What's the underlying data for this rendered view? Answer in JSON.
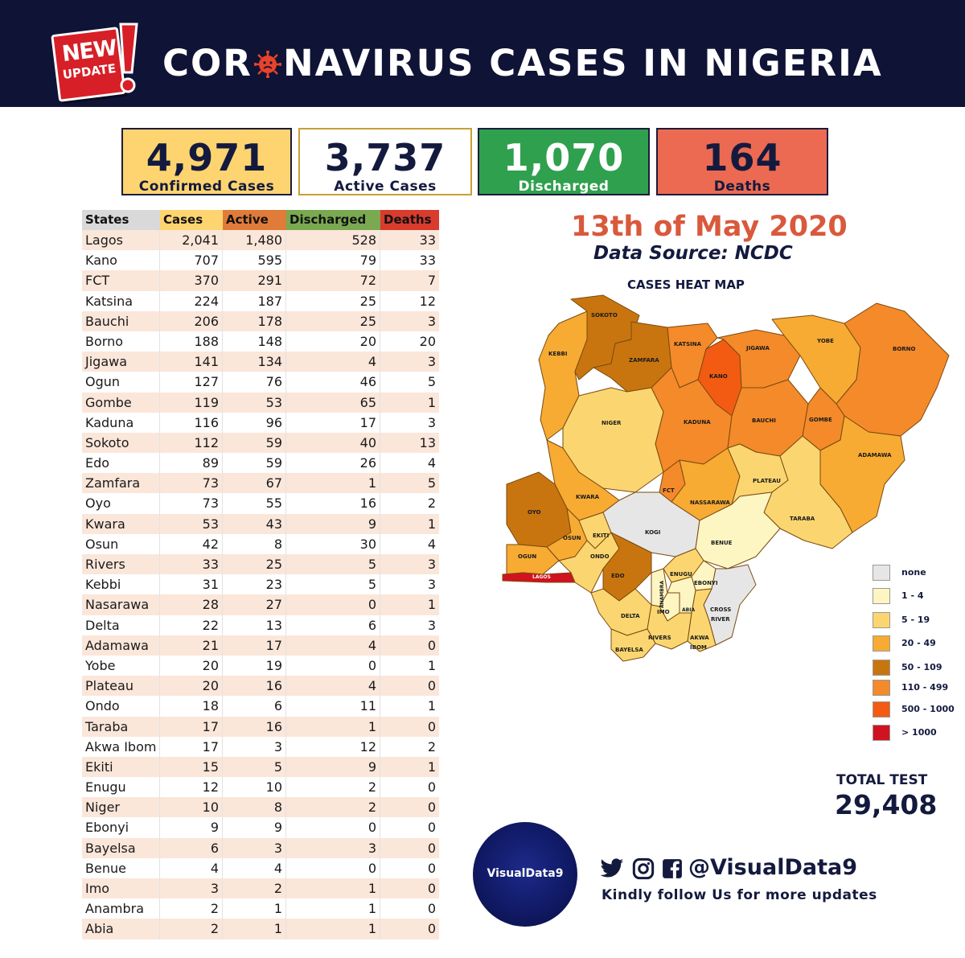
{
  "header": {
    "badge_new": "NEW",
    "badge_update": "UPDATE",
    "title_part1": "COR",
    "title_part2": "NAVIRUS CASES IN NIGERIA"
  },
  "summary": {
    "confirmed": {
      "value": "4,971",
      "label": "Confirmed Cases",
      "color": "#fdd46f"
    },
    "active": {
      "value": "3,737",
      "label": "Active Cases",
      "color": "#ffffff"
    },
    "discharged": {
      "value": "1,070",
      "label": "Discharged",
      "color": "#2fa04e"
    },
    "deaths": {
      "value": "164",
      "label": "Deaths",
      "color": "#ec6a52"
    }
  },
  "table": {
    "headers": [
      "States",
      "Cases",
      "Active",
      "Discharged",
      "Deaths"
    ],
    "rows": [
      [
        "Lagos",
        "2,041",
        "1,480",
        "528",
        "33"
      ],
      [
        "Kano",
        "707",
        "595",
        "79",
        "33"
      ],
      [
        "FCT",
        "370",
        "291",
        "72",
        "7"
      ],
      [
        "Katsina",
        "224",
        "187",
        "25",
        "12"
      ],
      [
        "Bauchi",
        "206",
        "178",
        "25",
        "3"
      ],
      [
        "Borno",
        "188",
        "148",
        "20",
        "20"
      ],
      [
        "Jigawa",
        "141",
        "134",
        "4",
        "3"
      ],
      [
        "Ogun",
        "127",
        "76",
        "46",
        "5"
      ],
      [
        "Gombe",
        "119",
        "53",
        "65",
        "1"
      ],
      [
        "Kaduna",
        "116",
        "96",
        "17",
        "3"
      ],
      [
        "Sokoto",
        "112",
        "59",
        "40",
        "13"
      ],
      [
        "Edo",
        "89",
        "59",
        "26",
        "4"
      ],
      [
        "Zamfara",
        "73",
        "67",
        "1",
        "5"
      ],
      [
        "Oyo",
        "73",
        "55",
        "16",
        "2"
      ],
      [
        "Kwara",
        "53",
        "43",
        "9",
        "1"
      ],
      [
        "Osun",
        "42",
        "8",
        "30",
        "4"
      ],
      [
        "Rivers",
        "33",
        "25",
        "5",
        "3"
      ],
      [
        "Kebbi",
        "31",
        "23",
        "5",
        "3"
      ],
      [
        "Nasarawa",
        "28",
        "27",
        "0",
        "1"
      ],
      [
        "Delta",
        "22",
        "13",
        "6",
        "3"
      ],
      [
        "Adamawa",
        "21",
        "17",
        "4",
        "0"
      ],
      [
        "Yobe",
        "20",
        "19",
        "0",
        "1"
      ],
      [
        "Plateau",
        "20",
        "16",
        "4",
        "0"
      ],
      [
        "Ondo",
        "18",
        "6",
        "11",
        "1"
      ],
      [
        "Taraba",
        "17",
        "16",
        "1",
        "0"
      ],
      [
        "Akwa Ibom",
        "17",
        "3",
        "12",
        "2"
      ],
      [
        "Ekiti",
        "15",
        "5",
        "9",
        "1"
      ],
      [
        "Enugu",
        "12",
        "10",
        "2",
        "0"
      ],
      [
        "Niger",
        "10",
        "8",
        "2",
        "0"
      ],
      [
        "Ebonyi",
        "9",
        "9",
        "0",
        "0"
      ],
      [
        "Bayelsa",
        "6",
        "3",
        "3",
        "0"
      ],
      [
        "Benue",
        "4",
        "4",
        "0",
        "0"
      ],
      [
        "Imo",
        "3",
        "2",
        "1",
        "0"
      ],
      [
        "Anambra",
        "2",
        "1",
        "1",
        "0"
      ],
      [
        "Abia",
        "2",
        "1",
        "1",
        "0"
      ]
    ]
  },
  "date": "13th of May 2020",
  "source": "Data Source: NCDC",
  "heatmap_title": "CASES HEAT MAP",
  "map_labels": {
    "sokoto": "SOKOTO",
    "kebbi": "KEBBI",
    "zamfara": "ZAMFARA",
    "katsina": "KATSINA",
    "kano": "KANO",
    "jigawa": "JIGAWA",
    "yobe": "YOBE",
    "borno": "BORNO",
    "niger": "NIGER",
    "kaduna": "KADUNA",
    "bauchi": "BAUCHI",
    "gombe": "GOMBE",
    "adamawa": "ADAMAWA",
    "fct": "FCT",
    "plateau": "PLATEAU",
    "nassarawa": "NASSARAWA",
    "kwara": "KWARA",
    "oyo": "OYO",
    "taraba": "TARABA",
    "kogi": "KOGI",
    "osun": "OSUN",
    "ekiti": "EKITI",
    "benue": "BENUE",
    "ogun": "OGUN",
    "ondo": "ONDO",
    "edo": "EDO",
    "lagos": "LAGOS",
    "enugu": "ENUGU",
    "ebonyi": "EBONYI",
    "anambra": "ANAMBRA",
    "delta": "DELTA",
    "imo": "IMO",
    "abia": "ABIA",
    "cross_river_1": "CROSS",
    "cross_river_2": "RIVER",
    "bayelsa": "BAYELSA",
    "rivers": "RIVERS",
    "akwa_ibom_1": "AKWA",
    "akwa_ibom_2": "IBOM"
  },
  "legend": [
    {
      "label": "none",
      "color": "#e6e6e6"
    },
    {
      "label": "1 - 4",
      "color": "#fdf6c3"
    },
    {
      "label": "5 - 19",
      "color": "#fbd670"
    },
    {
      "label": "20 - 49",
      "color": "#f7ab33"
    },
    {
      "label": "50 - 109",
      "color": "#c9750f"
    },
    {
      "label": "110 - 499",
      "color": "#f48a2a"
    },
    {
      "label": "500 - 1000",
      "color": "#f35b12"
    },
    {
      "label": "> 1000",
      "color": "#d1121f"
    }
  ],
  "total_test": {
    "label": "TOTAL TEST",
    "value": "29,408"
  },
  "logo_text": "VisualData9",
  "social": {
    "icons": [
      "twitter-icon",
      "instagram-icon",
      "facebook-icon"
    ],
    "handle": "@VisualData9",
    "follow": "Kindly follow Us for more updates"
  }
}
